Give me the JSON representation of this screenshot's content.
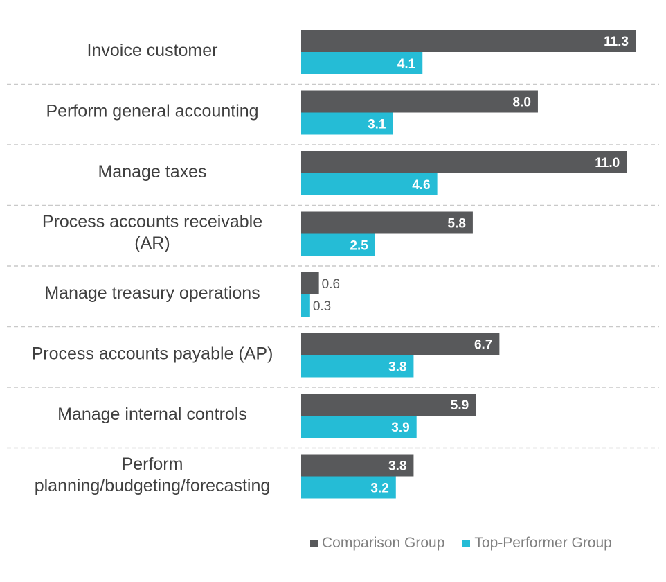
{
  "chart_data": {
    "type": "bar",
    "orientation": "horizontal",
    "categories": [
      [
        "Invoice customer"
      ],
      [
        "Perform general accounting"
      ],
      [
        "Manage taxes"
      ],
      [
        "Process accounts receivable",
        "(AR)"
      ],
      [
        "Manage treasury operations"
      ],
      [
        "Process accounts payable (AP)"
      ],
      [
        "Manage internal controls"
      ],
      [
        "Perform",
        "planning/budgeting/forecasting"
      ]
    ],
    "series": [
      {
        "name": "Comparison Group",
        "color": "#58595b",
        "values": [
          11.3,
          8.0,
          11.0,
          5.8,
          0.6,
          6.7,
          5.9,
          3.8
        ],
        "labels": [
          "11.3",
          "8.0",
          "11.0",
          "5.8",
          "0.6",
          "6.7",
          "5.9",
          "3.8"
        ]
      },
      {
        "name": "Top-Performer Group",
        "color": "#25bcd6",
        "values": [
          4.1,
          3.1,
          4.6,
          2.5,
          0.3,
          3.8,
          3.9,
          3.2
        ],
        "labels": [
          "4.1",
          "3.1",
          "4.6",
          "2.5",
          "0.3",
          "3.8",
          "3.9",
          "3.2"
        ]
      }
    ],
    "xlim": [
      0,
      11.3
    ],
    "legend_position": "bottom-right",
    "gridlines": "dashed separators between categories"
  }
}
